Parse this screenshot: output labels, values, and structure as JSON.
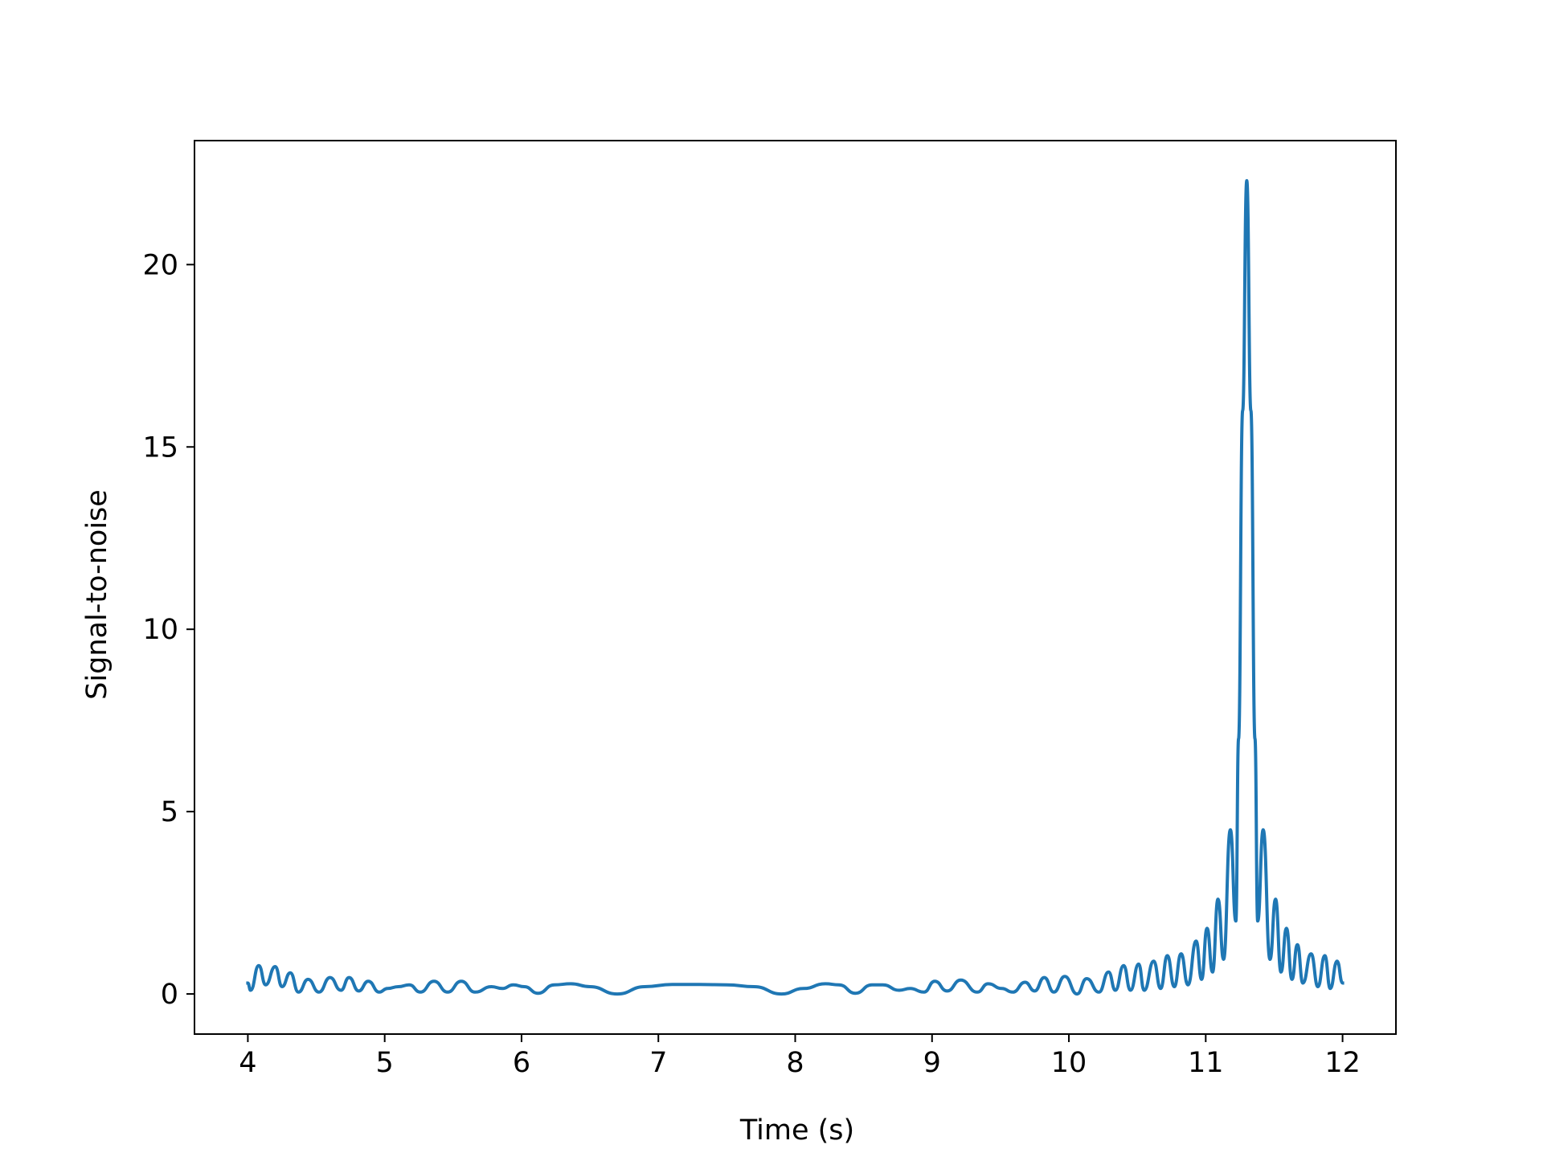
{
  "chart_data": {
    "type": "line",
    "title": "",
    "xlabel": "Time (s)",
    "ylabel": "Signal-to-noise",
    "xlim": [
      3.61,
      12.39
    ],
    "ylim": [
      -1.1,
      23.4
    ],
    "grid": false,
    "x_ticks": [
      4,
      5,
      6,
      7,
      8,
      9,
      10,
      11,
      12
    ],
    "y_ticks": [
      0,
      5,
      10,
      15,
      20
    ],
    "colors": {
      "line": "#1f77b4",
      "axes": "#000000",
      "background": "#ffffff"
    },
    "series": [
      {
        "points": [
          [
            4.0,
            0.3
          ],
          [
            4.02,
            0.1
          ],
          [
            4.08,
            0.78
          ],
          [
            4.13,
            0.25
          ],
          [
            4.2,
            0.75
          ],
          [
            4.25,
            0.2
          ],
          [
            4.31,
            0.58
          ],
          [
            4.37,
            0.05
          ],
          [
            4.44,
            0.4
          ],
          [
            4.52,
            0.05
          ],
          [
            4.6,
            0.45
          ],
          [
            4.68,
            0.1
          ],
          [
            4.74,
            0.45
          ],
          [
            4.81,
            0.08
          ],
          [
            4.88,
            0.35
          ],
          [
            4.96,
            0.05
          ],
          [
            5.02,
            0.15
          ],
          [
            5.1,
            0.2
          ],
          [
            5.18,
            0.25
          ],
          [
            5.26,
            0.05
          ],
          [
            5.36,
            0.35
          ],
          [
            5.46,
            0.05
          ],
          [
            5.56,
            0.35
          ],
          [
            5.66,
            0.05
          ],
          [
            5.78,
            0.2
          ],
          [
            5.86,
            0.15
          ],
          [
            5.94,
            0.25
          ],
          [
            6.02,
            0.2
          ],
          [
            6.12,
            0.02
          ],
          [
            6.24,
            0.25
          ],
          [
            6.36,
            0.28
          ],
          [
            6.5,
            0.2
          ],
          [
            6.7,
            0.0
          ],
          [
            6.9,
            0.2
          ],
          [
            7.1,
            0.26
          ],
          [
            7.3,
            0.26
          ],
          [
            7.5,
            0.25
          ],
          [
            7.7,
            0.2
          ],
          [
            7.9,
            0.0
          ],
          [
            8.06,
            0.15
          ],
          [
            8.22,
            0.28
          ],
          [
            8.32,
            0.25
          ],
          [
            8.44,
            0.02
          ],
          [
            8.56,
            0.25
          ],
          [
            8.64,
            0.25
          ],
          [
            8.76,
            0.1
          ],
          [
            8.84,
            0.15
          ],
          [
            8.94,
            0.05
          ],
          [
            9.02,
            0.35
          ],
          [
            9.11,
            0.08
          ],
          [
            9.21,
            0.38
          ],
          [
            9.33,
            0.05
          ],
          [
            9.41,
            0.28
          ],
          [
            9.51,
            0.15
          ],
          [
            9.59,
            0.05
          ],
          [
            9.68,
            0.32
          ],
          [
            9.75,
            0.08
          ],
          [
            9.82,
            0.45
          ],
          [
            9.89,
            0.05
          ],
          [
            9.97,
            0.48
          ],
          [
            10.06,
            0.0
          ],
          [
            10.13,
            0.42
          ],
          [
            10.22,
            0.05
          ],
          [
            10.29,
            0.6
          ],
          [
            10.34,
            0.1
          ],
          [
            10.4,
            0.78
          ],
          [
            10.45,
            0.1
          ],
          [
            10.51,
            0.82
          ],
          [
            10.55,
            0.1
          ],
          [
            10.62,
            0.9
          ],
          [
            10.67,
            0.15
          ],
          [
            10.72,
            1.05
          ],
          [
            10.77,
            0.2
          ],
          [
            10.82,
            1.1
          ],
          [
            10.87,
            0.25
          ],
          [
            10.93,
            1.45
          ],
          [
            10.97,
            0.4
          ],
          [
            11.01,
            1.8
          ],
          [
            11.05,
            0.6
          ],
          [
            11.09,
            2.6
          ],
          [
            11.13,
            0.95
          ],
          [
            11.18,
            4.5
          ],
          [
            11.22,
            2.0
          ],
          [
            11.24,
            7.0
          ],
          [
            11.27,
            16.0
          ],
          [
            11.3,
            22.3
          ],
          [
            11.33,
            16.0
          ],
          [
            11.36,
            7.0
          ],
          [
            11.38,
            2.0
          ],
          [
            11.42,
            4.5
          ],
          [
            11.47,
            0.95
          ],
          [
            11.51,
            2.6
          ],
          [
            11.55,
            0.6
          ],
          [
            11.59,
            1.8
          ],
          [
            11.63,
            0.4
          ],
          [
            11.67,
            1.35
          ],
          [
            11.71,
            0.3
          ],
          [
            11.77,
            1.1
          ],
          [
            11.82,
            0.2
          ],
          [
            11.87,
            1.05
          ],
          [
            11.91,
            0.15
          ],
          [
            11.96,
            0.9
          ],
          [
            12.0,
            0.3
          ]
        ]
      }
    ]
  }
}
